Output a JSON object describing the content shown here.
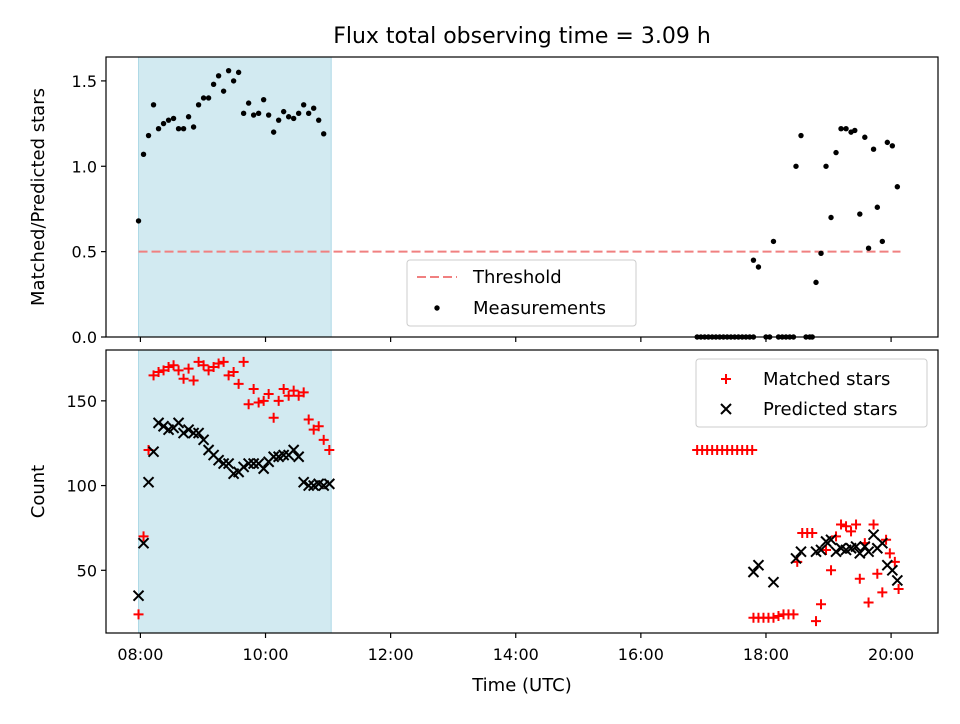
{
  "chart_data": [
    {
      "type": "scatter",
      "title": "Flux total observing time = 3.09 h",
      "xlabel": "",
      "ylabel": "Matched/Predicted stars",
      "xlim": [
        7.45,
        20.75
      ],
      "ylim": [
        0.0,
        1.64
      ],
      "yticks": [
        0.0,
        0.5,
        1.0,
        1.5
      ],
      "ytick_labels": [
        "0.0",
        "0.5",
        "1.0",
        "1.5"
      ],
      "shaded_span": [
        7.97,
        11.05
      ],
      "shaded_color": "#add8e6",
      "threshold": {
        "name": "Threshold",
        "y": 0.5,
        "x_range": [
          7.97,
          20.15
        ],
        "color": "#f08080",
        "style": "dashed"
      },
      "legend": {
        "placement": "lower-center",
        "entries": [
          "Threshold",
          "Measurements"
        ]
      },
      "series": [
        {
          "name": "Measurements",
          "color": "#000000",
          "marker": "dot",
          "points": [
            [
              7.97,
              0.68
            ],
            [
              8.05,
              1.07
            ],
            [
              8.13,
              1.18
            ],
            [
              8.21,
              1.36
            ],
            [
              8.29,
              1.22
            ],
            [
              8.37,
              1.25
            ],
            [
              8.45,
              1.27
            ],
            [
              8.53,
              1.28
            ],
            [
              8.61,
              1.22
            ],
            [
              8.69,
              1.22
            ],
            [
              8.77,
              1.29
            ],
            [
              8.85,
              1.23
            ],
            [
              8.93,
              1.36
            ],
            [
              9.01,
              1.4
            ],
            [
              9.09,
              1.4
            ],
            [
              9.17,
              1.48
            ],
            [
              9.25,
              1.53
            ],
            [
              9.33,
              1.44
            ],
            [
              9.41,
              1.56
            ],
            [
              9.49,
              1.5
            ],
            [
              9.57,
              1.55
            ],
            [
              9.65,
              1.31
            ],
            [
              9.73,
              1.37
            ],
            [
              9.81,
              1.3
            ],
            [
              9.89,
              1.31
            ],
            [
              9.97,
              1.39
            ],
            [
              10.05,
              1.3
            ],
            [
              10.13,
              1.2
            ],
            [
              10.21,
              1.27
            ],
            [
              10.29,
              1.32
            ],
            [
              10.37,
              1.29
            ],
            [
              10.45,
              1.28
            ],
            [
              10.53,
              1.31
            ],
            [
              10.61,
              1.36
            ],
            [
              10.69,
              1.31
            ],
            [
              10.77,
              1.34
            ],
            [
              10.85,
              1.27
            ],
            [
              10.93,
              1.19
            ],
            [
              16.9,
              0.0
            ],
            [
              16.96,
              0.0
            ],
            [
              17.02,
              0.0
            ],
            [
              17.08,
              0.0
            ],
            [
              17.14,
              0.0
            ],
            [
              17.2,
              0.0
            ],
            [
              17.26,
              0.0
            ],
            [
              17.32,
              0.0
            ],
            [
              17.38,
              0.0
            ],
            [
              17.44,
              0.0
            ],
            [
              17.5,
              0.0
            ],
            [
              17.56,
              0.0
            ],
            [
              17.62,
              0.0
            ],
            [
              17.68,
              0.0
            ],
            [
              17.74,
              0.0
            ],
            [
              17.8,
              0.0
            ],
            [
              17.8,
              0.45
            ],
            [
              17.88,
              0.41
            ],
            [
              18.0,
              0.0
            ],
            [
              18.06,
              0.0
            ],
            [
              18.12,
              0.56
            ],
            [
              18.2,
              0.0
            ],
            [
              18.26,
              0.0
            ],
            [
              18.32,
              0.0
            ],
            [
              18.38,
              0.0
            ],
            [
              18.44,
              0.0
            ],
            [
              18.48,
              1.0
            ],
            [
              18.56,
              1.18
            ],
            [
              18.64,
              0.0
            ],
            [
              18.7,
              0.0
            ],
            [
              18.74,
              0.0
            ],
            [
              18.8,
              0.32
            ],
            [
              18.88,
              0.49
            ],
            [
              18.96,
              1.0
            ],
            [
              19.04,
              0.7
            ],
            [
              19.12,
              1.08
            ],
            [
              19.2,
              1.22
            ],
            [
              19.28,
              1.22
            ],
            [
              19.36,
              1.2
            ],
            [
              19.42,
              1.21
            ],
            [
              19.5,
              0.72
            ],
            [
              19.58,
              1.17
            ],
            [
              19.64,
              0.52
            ],
            [
              19.72,
              1.1
            ],
            [
              19.78,
              0.76
            ],
            [
              19.86,
              0.56
            ],
            [
              19.94,
              1.14
            ],
            [
              20.02,
              1.12
            ],
            [
              20.1,
              0.88
            ]
          ]
        }
      ]
    },
    {
      "type": "scatter",
      "title": "",
      "xlabel": "Time (UTC)",
      "ylabel": "Count",
      "xlim": [
        7.45,
        20.75
      ],
      "ylim": [
        13,
        180
      ],
      "xticks": [
        8,
        10,
        12,
        14,
        16,
        18,
        20
      ],
      "xtick_labels": [
        "08:00",
        "10:00",
        "12:00",
        "14:00",
        "16:00",
        "18:00",
        "20:00"
      ],
      "yticks": [
        50,
        100,
        150
      ],
      "ytick_labels": [
        "50",
        "100",
        "150"
      ],
      "shaded_span": [
        7.97,
        11.05
      ],
      "shaded_color": "#add8e6",
      "legend": {
        "placement": "upper-right",
        "entries": [
          "Matched stars",
          "Predicted stars"
        ]
      },
      "series": [
        {
          "name": "Matched stars",
          "color": "#ff0000",
          "marker": "plus",
          "points": [
            [
              7.97,
              24
            ],
            [
              8.05,
              70
            ],
            [
              8.13,
              121
            ],
            [
              8.21,
              165
            ],
            [
              8.29,
              167
            ],
            [
              8.37,
              168
            ],
            [
              8.45,
              170
            ],
            [
              8.53,
              171
            ],
            [
              8.61,
              168
            ],
            [
              8.69,
              163
            ],
            [
              8.77,
              169
            ],
            [
              8.85,
              162
            ],
            [
              8.93,
              173
            ],
            [
              9.01,
              171
            ],
            [
              9.09,
              168
            ],
            [
              9.17,
              170
            ],
            [
              9.25,
              172
            ],
            [
              9.33,
              173
            ],
            [
              9.41,
              165
            ],
            [
              9.49,
              167
            ],
            [
              9.57,
              160
            ],
            [
              9.65,
              173
            ],
            [
              9.73,
              148
            ],
            [
              9.81,
              157
            ],
            [
              9.89,
              149
            ],
            [
              9.97,
              150
            ],
            [
              10.05,
              154
            ],
            [
              10.13,
              140
            ],
            [
              10.21,
              150
            ],
            [
              10.29,
              157
            ],
            [
              10.37,
              153
            ],
            [
              10.45,
              156
            ],
            [
              10.53,
              153
            ],
            [
              10.61,
              155
            ],
            [
              10.69,
              139
            ],
            [
              10.77,
              133
            ],
            [
              10.85,
              135
            ],
            [
              10.93,
              127
            ],
            [
              11.02,
              121
            ],
            [
              16.9,
              121
            ],
            [
              16.98,
              121
            ],
            [
              17.06,
              121
            ],
            [
              17.14,
              121
            ],
            [
              17.22,
              121
            ],
            [
              17.3,
              121
            ],
            [
              17.38,
              121
            ],
            [
              17.46,
              121
            ],
            [
              17.54,
              121
            ],
            [
              17.62,
              121
            ],
            [
              17.7,
              121
            ],
            [
              17.78,
              121
            ],
            [
              17.8,
              22
            ],
            [
              17.88,
              22
            ],
            [
              17.96,
              22
            ],
            [
              18.04,
              22
            ],
            [
              18.12,
              22
            ],
            [
              18.2,
              23
            ],
            [
              18.28,
              24
            ],
            [
              18.36,
              24
            ],
            [
              18.44,
              24
            ],
            [
              18.5,
              55
            ],
            [
              18.58,
              72
            ],
            [
              18.66,
              72
            ],
            [
              18.74,
              72
            ],
            [
              18.8,
              20
            ],
            [
              18.88,
              30
            ],
            [
              18.96,
              62
            ],
            [
              19.04,
              50
            ],
            [
              19.12,
              70
            ],
            [
              19.2,
              77
            ],
            [
              19.28,
              76
            ],
            [
              19.36,
              73
            ],
            [
              19.44,
              77
            ],
            [
              19.5,
              45
            ],
            [
              19.58,
              66
            ],
            [
              19.64,
              31
            ],
            [
              19.72,
              77
            ],
            [
              19.78,
              48
            ],
            [
              19.86,
              37
            ],
            [
              19.92,
              68
            ],
            [
              19.98,
              60
            ],
            [
              20.06,
              55
            ],
            [
              20.12,
              39
            ]
          ]
        },
        {
          "name": "Predicted stars",
          "color": "#000000",
          "marker": "x",
          "points": [
            [
              7.97,
              35
            ],
            [
              8.05,
              66
            ],
            [
              8.13,
              102
            ],
            [
              8.21,
              120
            ],
            [
              8.29,
              137
            ],
            [
              8.37,
              135
            ],
            [
              8.45,
              133
            ],
            [
              8.53,
              134
            ],
            [
              8.61,
              137
            ],
            [
              8.69,
              131
            ],
            [
              8.77,
              133
            ],
            [
              8.85,
              131
            ],
            [
              8.93,
              131
            ],
            [
              9.01,
              127
            ],
            [
              9.09,
              121
            ],
            [
              9.17,
              118
            ],
            [
              9.25,
              115
            ],
            [
              9.33,
              113
            ],
            [
              9.41,
              113
            ],
            [
              9.49,
              107
            ],
            [
              9.57,
              108
            ],
            [
              9.65,
              111
            ],
            [
              9.73,
              113
            ],
            [
              9.81,
              113
            ],
            [
              9.89,
              113
            ],
            [
              9.97,
              110
            ],
            [
              10.05,
              114
            ],
            [
              10.13,
              117
            ],
            [
              10.21,
              117
            ],
            [
              10.29,
              118
            ],
            [
              10.37,
              118
            ],
            [
              10.45,
              121
            ],
            [
              10.53,
              117
            ],
            [
              10.61,
              102
            ],
            [
              10.69,
              100
            ],
            [
              10.77,
              100
            ],
            [
              10.85,
              101
            ],
            [
              10.93,
              100
            ],
            [
              11.02,
              101
            ],
            [
              17.8,
              49
            ],
            [
              17.88,
              53
            ],
            [
              18.12,
              43
            ],
            [
              18.48,
              57
            ],
            [
              18.56,
              61
            ],
            [
              18.8,
              61
            ],
            [
              18.88,
              62
            ],
            [
              18.96,
              67
            ],
            [
              19.04,
              68
            ],
            [
              19.12,
              61
            ],
            [
              19.2,
              63
            ],
            [
              19.28,
              62
            ],
            [
              19.36,
              63
            ],
            [
              19.44,
              64
            ],
            [
              19.5,
              60
            ],
            [
              19.58,
              64
            ],
            [
              19.64,
              61
            ],
            [
              19.72,
              71
            ],
            [
              19.78,
              63
            ],
            [
              19.86,
              66
            ],
            [
              19.94,
              53
            ],
            [
              20.02,
              50
            ],
            [
              20.1,
              44
            ]
          ]
        }
      ]
    }
  ]
}
